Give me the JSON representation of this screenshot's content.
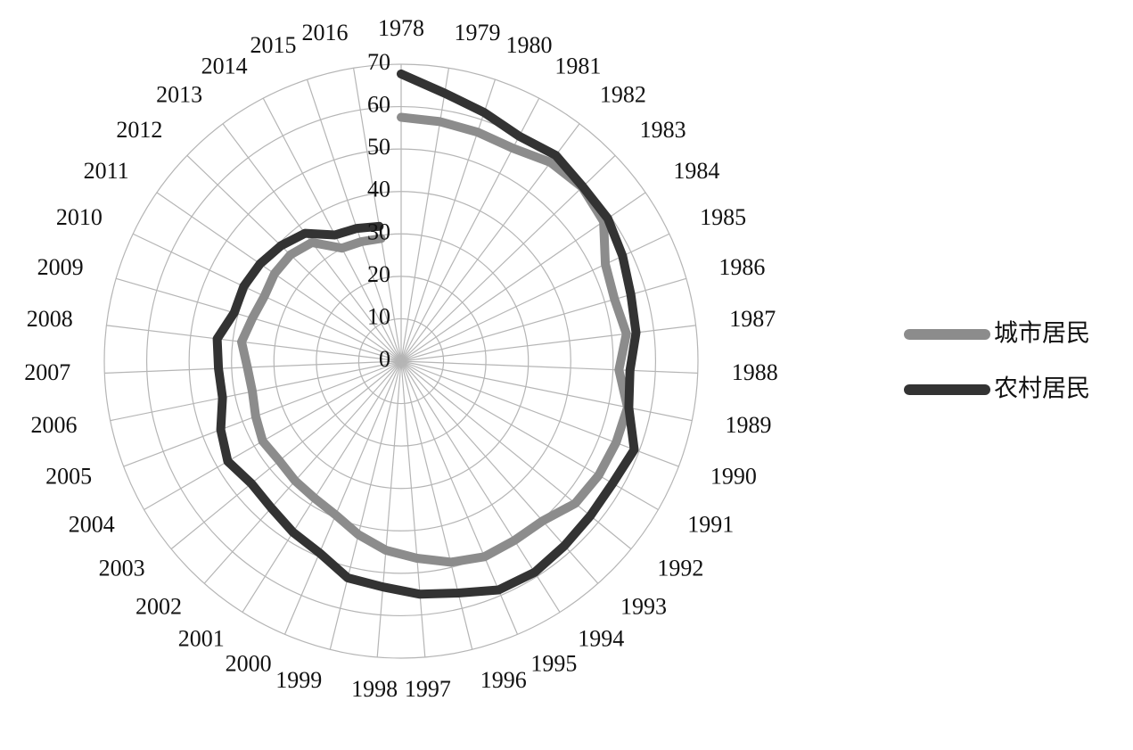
{
  "chart_data": {
    "type": "radar",
    "categories": [
      "1978",
      "1979",
      "1980",
      "1981",
      "1982",
      "1983",
      "1984",
      "1985",
      "1986",
      "1987",
      "1988",
      "1989",
      "1990",
      "1991",
      "1992",
      "1993",
      "1994",
      "1995",
      "1996",
      "1997",
      "1998",
      "1999",
      "2000",
      "2001",
      "2002",
      "2003",
      "2004",
      "2005",
      "2006",
      "2007",
      "2008",
      "2009",
      "2010",
      "2011",
      "2012",
      "2013",
      "2014",
      "2015",
      "2016"
    ],
    "series": [
      {
        "name": "城市居民",
        "color": "#8c8c8c",
        "values": [
          57.5,
          57.2,
          56.9,
          56.7,
          58.6,
          59.2,
          58.0,
          53.3,
          52.4,
          53.5,
          51.4,
          54.5,
          54.2,
          53.8,
          53.0,
          50.3,
          50.0,
          50.1,
          48.8,
          46.6,
          44.7,
          42.1,
          39.4,
          38.2,
          37.7,
          37.1,
          37.7,
          36.7,
          35.8,
          36.3,
          37.9,
          36.5,
          35.7,
          36.3,
          36.2,
          35.0,
          30.1,
          29.7,
          29.3
        ]
      },
      {
        "name": "农村居民",
        "color": "#333333",
        "values": [
          67.7,
          64.0,
          61.8,
          59.9,
          60.7,
          59.4,
          59.2,
          57.8,
          56.4,
          55.8,
          54.0,
          54.8,
          58.8,
          57.6,
          57.6,
          58.1,
          58.9,
          58.6,
          56.3,
          55.1,
          53.4,
          52.6,
          49.1,
          47.7,
          46.2,
          45.6,
          47.2,
          45.5,
          43.0,
          43.1,
          43.7,
          41.0,
          41.1,
          40.4,
          39.3,
          37.7,
          33.6,
          33.0,
          32.2
        ]
      }
    ],
    "ylim": [
      0,
      70
    ],
    "yticks": [
      0,
      10,
      20,
      30,
      40,
      50,
      60,
      70
    ],
    "grid": true,
    "legend": "right"
  }
}
